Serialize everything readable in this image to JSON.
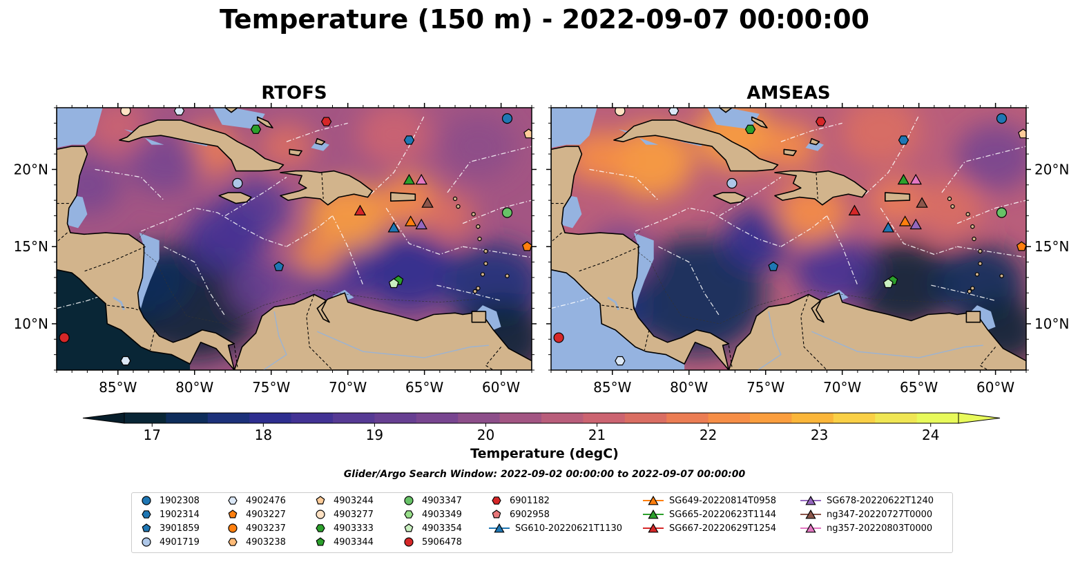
{
  "title": "Temperature (150 m) - 2022-09-07 00:00:00",
  "panels": [
    {
      "title": "RTOFS",
      "field": "rtofs"
    },
    {
      "title": "AMSEAS",
      "field": "amseas"
    }
  ],
  "map": {
    "lon_min": -89,
    "lon_max": -58,
    "lat_min": 7,
    "lat_max": 24,
    "lon_ticks": [
      "85°W",
      "80°W",
      "75°W",
      "70°W",
      "65°W",
      "60°W"
    ],
    "lon_tick_values": [
      -85,
      -80,
      -75,
      -70,
      -65,
      -60
    ],
    "lat_ticks": [
      "10°N",
      "15°N",
      "20°N"
    ],
    "lat_tick_values": [
      10,
      15,
      20
    ],
    "colors": {
      "land": "#d2b48c",
      "shallow": "#95b3e0",
      "border": "#000000",
      "eez": "#ffffff"
    }
  },
  "colorbar": {
    "label": "Temperature (degC)",
    "min": 16.75,
    "max": 24.25,
    "step": 0.5,
    "ticks": [
      "17",
      "18",
      "19",
      "20",
      "21",
      "22",
      "23",
      "24"
    ],
    "tick_values": [
      17,
      18,
      19,
      20,
      21,
      22,
      23,
      24
    ],
    "colors": [
      "#092636",
      "#0e2d5b",
      "#1c317a",
      "#2e2e8f",
      "#423294",
      "#563a94",
      "#673f92",
      "#784590",
      "#8d4e8a",
      "#a35583",
      "#b95e7b",
      "#cc6471",
      "#da6e63",
      "#eb7d54",
      "#f68e47",
      "#fb9e3e",
      "#fbb63a",
      "#fad046",
      "#f0e654",
      "#e8fa5b"
    ],
    "under": "#071e2b",
    "over": "#e8fa5b"
  },
  "search_window": "Glider/Argo Search Window: 2022-09-02 00:00:00 to 2022-09-07 00:00:00",
  "legend": [
    {
      "label": "1902308",
      "marker": "circle",
      "color": "#1f77b4"
    },
    {
      "label": "1902314",
      "marker": "hexagon",
      "color": "#1f77b4"
    },
    {
      "label": "3901859",
      "marker": "pentagon",
      "color": "#1f77b4"
    },
    {
      "label": "4901719",
      "marker": "circle",
      "color": "#aec7e8"
    },
    {
      "label": "4902476",
      "marker": "hexagon",
      "color": "#dbe8f7"
    },
    {
      "label": "4903227",
      "marker": "pentagon",
      "color": "#ff7f0e"
    },
    {
      "label": "4903237",
      "marker": "circle",
      "color": "#ff7f0e"
    },
    {
      "label": "4903238",
      "marker": "hexagon",
      "color": "#ffbb78"
    },
    {
      "label": "4903244",
      "marker": "pentagon",
      "color": "#ffcc99"
    },
    {
      "label": "4903277",
      "marker": "circle",
      "color": "#ffe2c4"
    },
    {
      "label": "4903333",
      "marker": "hexagon",
      "color": "#2ca02c"
    },
    {
      "label": "4903344",
      "marker": "pentagon",
      "color": "#2ca02c"
    },
    {
      "label": "4903347",
      "marker": "circle",
      "color": "#67c267"
    },
    {
      "label": "4903349",
      "marker": "hexagon",
      "color": "#98df8a"
    },
    {
      "label": "4903354",
      "marker": "pentagon",
      "color": "#c9efc0"
    },
    {
      "label": "5906478",
      "marker": "circle",
      "color": "#d62728"
    },
    {
      "label": "6901182",
      "marker": "hexagon",
      "color": "#d62728"
    },
    {
      "label": "6902958",
      "marker": "pentagon",
      "color": "#e8777a"
    },
    {
      "label": "SG610-20220621T1130",
      "marker": "triangle",
      "color": "#1f77b4",
      "line": true
    },
    {
      "label": "SG649-20220814T0958",
      "marker": "triangle",
      "color": "#ff7f0e",
      "line": true
    },
    {
      "label": "SG665-20220623T1144",
      "marker": "triangle",
      "color": "#2ca02c",
      "line": true
    },
    {
      "label": "SG667-20220629T1254",
      "marker": "triangle",
      "color": "#d62728",
      "line": true
    },
    {
      "label": "SG678-20220622T1240",
      "marker": "triangle",
      "color": "#9467bd",
      "line": true
    },
    {
      "label": "ng347-20220727T0000",
      "marker": "triangle",
      "color": "#8c564b",
      "line": true
    },
    {
      "label": "ng357-20220803T0000",
      "marker": "triangle",
      "color": "#e377c2",
      "line": true
    }
  ],
  "observations": [
    {
      "id": "1902308",
      "lon": -59.6,
      "lat": 23.3
    },
    {
      "id": "1902314",
      "lon": -66.0,
      "lat": 21.9
    },
    {
      "id": "3901859",
      "lon": -74.5,
      "lat": 13.7
    },
    {
      "id": "4901719",
      "lon": -77.2,
      "lat": 19.1
    },
    {
      "id": "4902476",
      "lon": -84.5,
      "lat": 7.6
    },
    {
      "id": "4902476",
      "lon": -81.0,
      "lat": 23.8
    },
    {
      "id": "4903227",
      "lon": -58.3,
      "lat": 15.0
    },
    {
      "id": "4903244",
      "lon": -58.2,
      "lat": 22.3
    },
    {
      "id": "4903277",
      "lon": -84.5,
      "lat": 23.8
    },
    {
      "id": "4903333",
      "lon": -76.0,
      "lat": 22.6
    },
    {
      "id": "4903344",
      "lon": -66.7,
      "lat": 12.8
    },
    {
      "id": "4903347",
      "lon": -59.6,
      "lat": 17.2
    },
    {
      "id": "4903354",
      "lon": -67.0,
      "lat": 12.6
    },
    {
      "id": "5906478",
      "lon": -88.5,
      "lat": 9.1
    },
    {
      "id": "6901182",
      "lon": -71.4,
      "lat": 23.1
    },
    {
      "id": "SG610-20220621T1130",
      "lon": -67.0,
      "lat": 16.2
    },
    {
      "id": "SG649-20220814T0958",
      "lon": -65.9,
      "lat": 16.6
    },
    {
      "id": "SG665-20220623T1144",
      "lon": -66.0,
      "lat": 19.3
    },
    {
      "id": "SG667-20220629T1254",
      "lon": -69.2,
      "lat": 17.3
    },
    {
      "id": "SG678-20220622T1240",
      "lon": -65.2,
      "lat": 16.4
    },
    {
      "id": "ng347-20220727T0000",
      "lon": -64.8,
      "lat": 17.8
    },
    {
      "id": "ng357-20220803T0000",
      "lon": -65.2,
      "lat": 19.3
    }
  ]
}
